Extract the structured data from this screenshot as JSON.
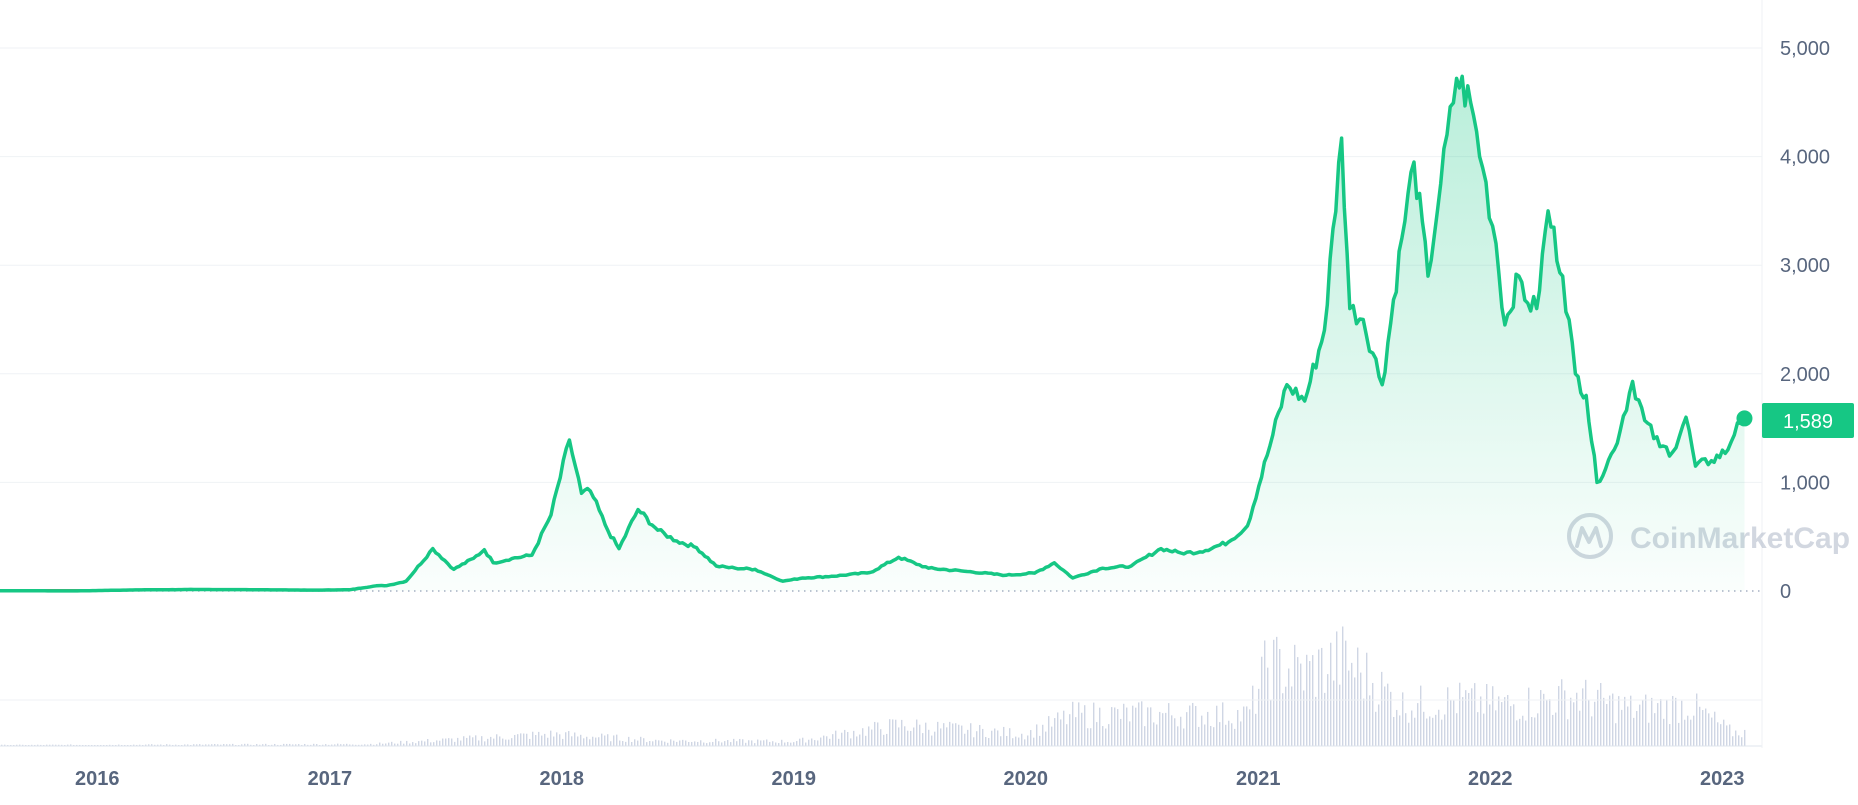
{
  "chart_data": {
    "type": "area",
    "title": "",
    "xlabel": "",
    "ylabel": "",
    "x_ticks": [
      "2016",
      "2017",
      "2018",
      "2019",
      "2020",
      "2021",
      "2022",
      "2023"
    ],
    "y_ticks": [
      0,
      1000,
      2000,
      3000,
      4000,
      5000
    ],
    "y_tick_labels": [
      "0",
      "1,000",
      "2,000",
      "3,000",
      "4,000",
      "5,000"
    ],
    "ylim": [
      0,
      5000
    ],
    "xlim": [
      "2015-08",
      "2023-02"
    ],
    "grid": true,
    "current_price_label": "1,589",
    "current_price": 1589,
    "watermark": "CoinMarketCap",
    "colors": {
      "line": "#16c784",
      "area_top": "#16c784",
      "grid": "#eff2f5",
      "axis_text": "#58667e",
      "volume_bar": "#cfd6e4",
      "early_line": "#e8564a"
    },
    "series": [
      {
        "values": [
          [
            "2015-08-01",
            2
          ],
          [
            "2015-12-01",
            1
          ],
          [
            "2016-03-01",
            10
          ],
          [
            "2016-06-01",
            14
          ],
          [
            "2016-09-01",
            12
          ],
          [
            "2016-12-01",
            8
          ],
          [
            "2017-02-01",
            11
          ],
          [
            "2017-03-15",
            48
          ],
          [
            "2017-04-01",
            50
          ],
          [
            "2017-05-01",
            90
          ],
          [
            "2017-06-12",
            390
          ],
          [
            "2017-07-15",
            200
          ],
          [
            "2017-08-15",
            300
          ],
          [
            "2017-09-01",
            380
          ],
          [
            "2017-09-15",
            260
          ],
          [
            "2017-10-15",
            300
          ],
          [
            "2017-11-15",
            330
          ],
          [
            "2017-12-15",
            700
          ],
          [
            "2018-01-13",
            1390
          ],
          [
            "2018-02-01",
            900
          ],
          [
            "2018-02-15",
            920
          ],
          [
            "2018-03-15",
            550
          ],
          [
            "2018-04-01",
            390
          ],
          [
            "2018-05-01",
            750
          ],
          [
            "2018-06-01",
            560
          ],
          [
            "2018-07-01",
            460
          ],
          [
            "2018-08-01",
            400
          ],
          [
            "2018-09-01",
            230
          ],
          [
            "2018-10-01",
            210
          ],
          [
            "2018-11-01",
            200
          ],
          [
            "2018-12-15",
            90
          ],
          [
            "2019-01-15",
            120
          ],
          [
            "2019-03-01",
            135
          ],
          [
            "2019-05-01",
            170
          ],
          [
            "2019-06-15",
            310
          ],
          [
            "2019-08-01",
            210
          ],
          [
            "2019-10-01",
            180
          ],
          [
            "2019-12-01",
            145
          ],
          [
            "2020-01-15",
            165
          ],
          [
            "2020-02-15",
            260
          ],
          [
            "2020-03-15",
            120
          ],
          [
            "2020-05-01",
            210
          ],
          [
            "2020-06-15",
            230
          ],
          [
            "2020-08-01",
            390
          ],
          [
            "2020-09-01",
            350
          ],
          [
            "2020-10-01",
            360
          ],
          [
            "2020-11-15",
            450
          ],
          [
            "2020-12-15",
            600
          ],
          [
            "2021-01-15",
            1250
          ],
          [
            "2021-02-15",
            1900
          ],
          [
            "2021-03-15",
            1750
          ],
          [
            "2021-04-15",
            2400
          ],
          [
            "2021-05-12",
            4170
          ],
          [
            "2021-05-25",
            2600
          ],
          [
            "2021-06-15",
            2500
          ],
          [
            "2021-07-15",
            1900
          ],
          [
            "2021-08-15",
            3250
          ],
          [
            "2021-09-03",
            3950
          ],
          [
            "2021-09-25",
            2900
          ],
          [
            "2021-10-15",
            3750
          ],
          [
            "2021-11-09",
            4720
          ],
          [
            "2021-12-01",
            4500
          ],
          [
            "2021-12-20",
            3900
          ],
          [
            "2022-01-10",
            3200
          ],
          [
            "2022-01-24",
            2450
          ],
          [
            "2022-02-15",
            2900
          ],
          [
            "2022-03-01",
            2650
          ],
          [
            "2022-03-15",
            2600
          ],
          [
            "2022-04-02",
            3500
          ],
          [
            "2022-04-25",
            2900
          ],
          [
            "2022-05-15",
            2000
          ],
          [
            "2022-06-01",
            1800
          ],
          [
            "2022-06-18",
            1000
          ],
          [
            "2022-07-15",
            1300
          ],
          [
            "2022-08-13",
            1930
          ],
          [
            "2022-09-01",
            1570
          ],
          [
            "2022-09-25",
            1330
          ],
          [
            "2022-10-15",
            1280
          ],
          [
            "2022-11-05",
            1600
          ],
          [
            "2022-11-20",
            1150
          ],
          [
            "2022-12-15",
            1200
          ],
          [
            "2023-01-10",
            1300
          ],
          [
            "2023-01-25",
            1550
          ],
          [
            "2023-02-05",
            1589
          ]
        ]
      }
    ],
    "volume": {
      "unit": "relative",
      "values": [
        [
          "2015-08-01",
          0.01
        ],
        [
          "2017-03-01",
          0.02
        ],
        [
          "2017-12-15",
          0.13
        ],
        [
          "2018-06-01",
          0.06
        ],
        [
          "2019-01-01",
          0.05
        ],
        [
          "2019-06-15",
          0.23
        ],
        [
          "2020-01-01",
          0.13
        ],
        [
          "2020-03-15",
          0.34
        ],
        [
          "2020-08-01",
          0.35
        ],
        [
          "2020-12-15",
          0.34
        ],
        [
          "2021-01-15",
          0.9
        ],
        [
          "2021-03-15",
          0.8
        ],
        [
          "2021-05-15",
          0.95
        ],
        [
          "2021-08-15",
          0.45
        ],
        [
          "2021-11-15",
          0.5
        ],
        [
          "2022-02-01",
          0.45
        ],
        [
          "2022-05-15",
          0.55
        ],
        [
          "2022-08-15",
          0.4
        ],
        [
          "2022-11-10",
          0.45
        ],
        [
          "2023-01-15",
          0.15
        ]
      ]
    }
  }
}
